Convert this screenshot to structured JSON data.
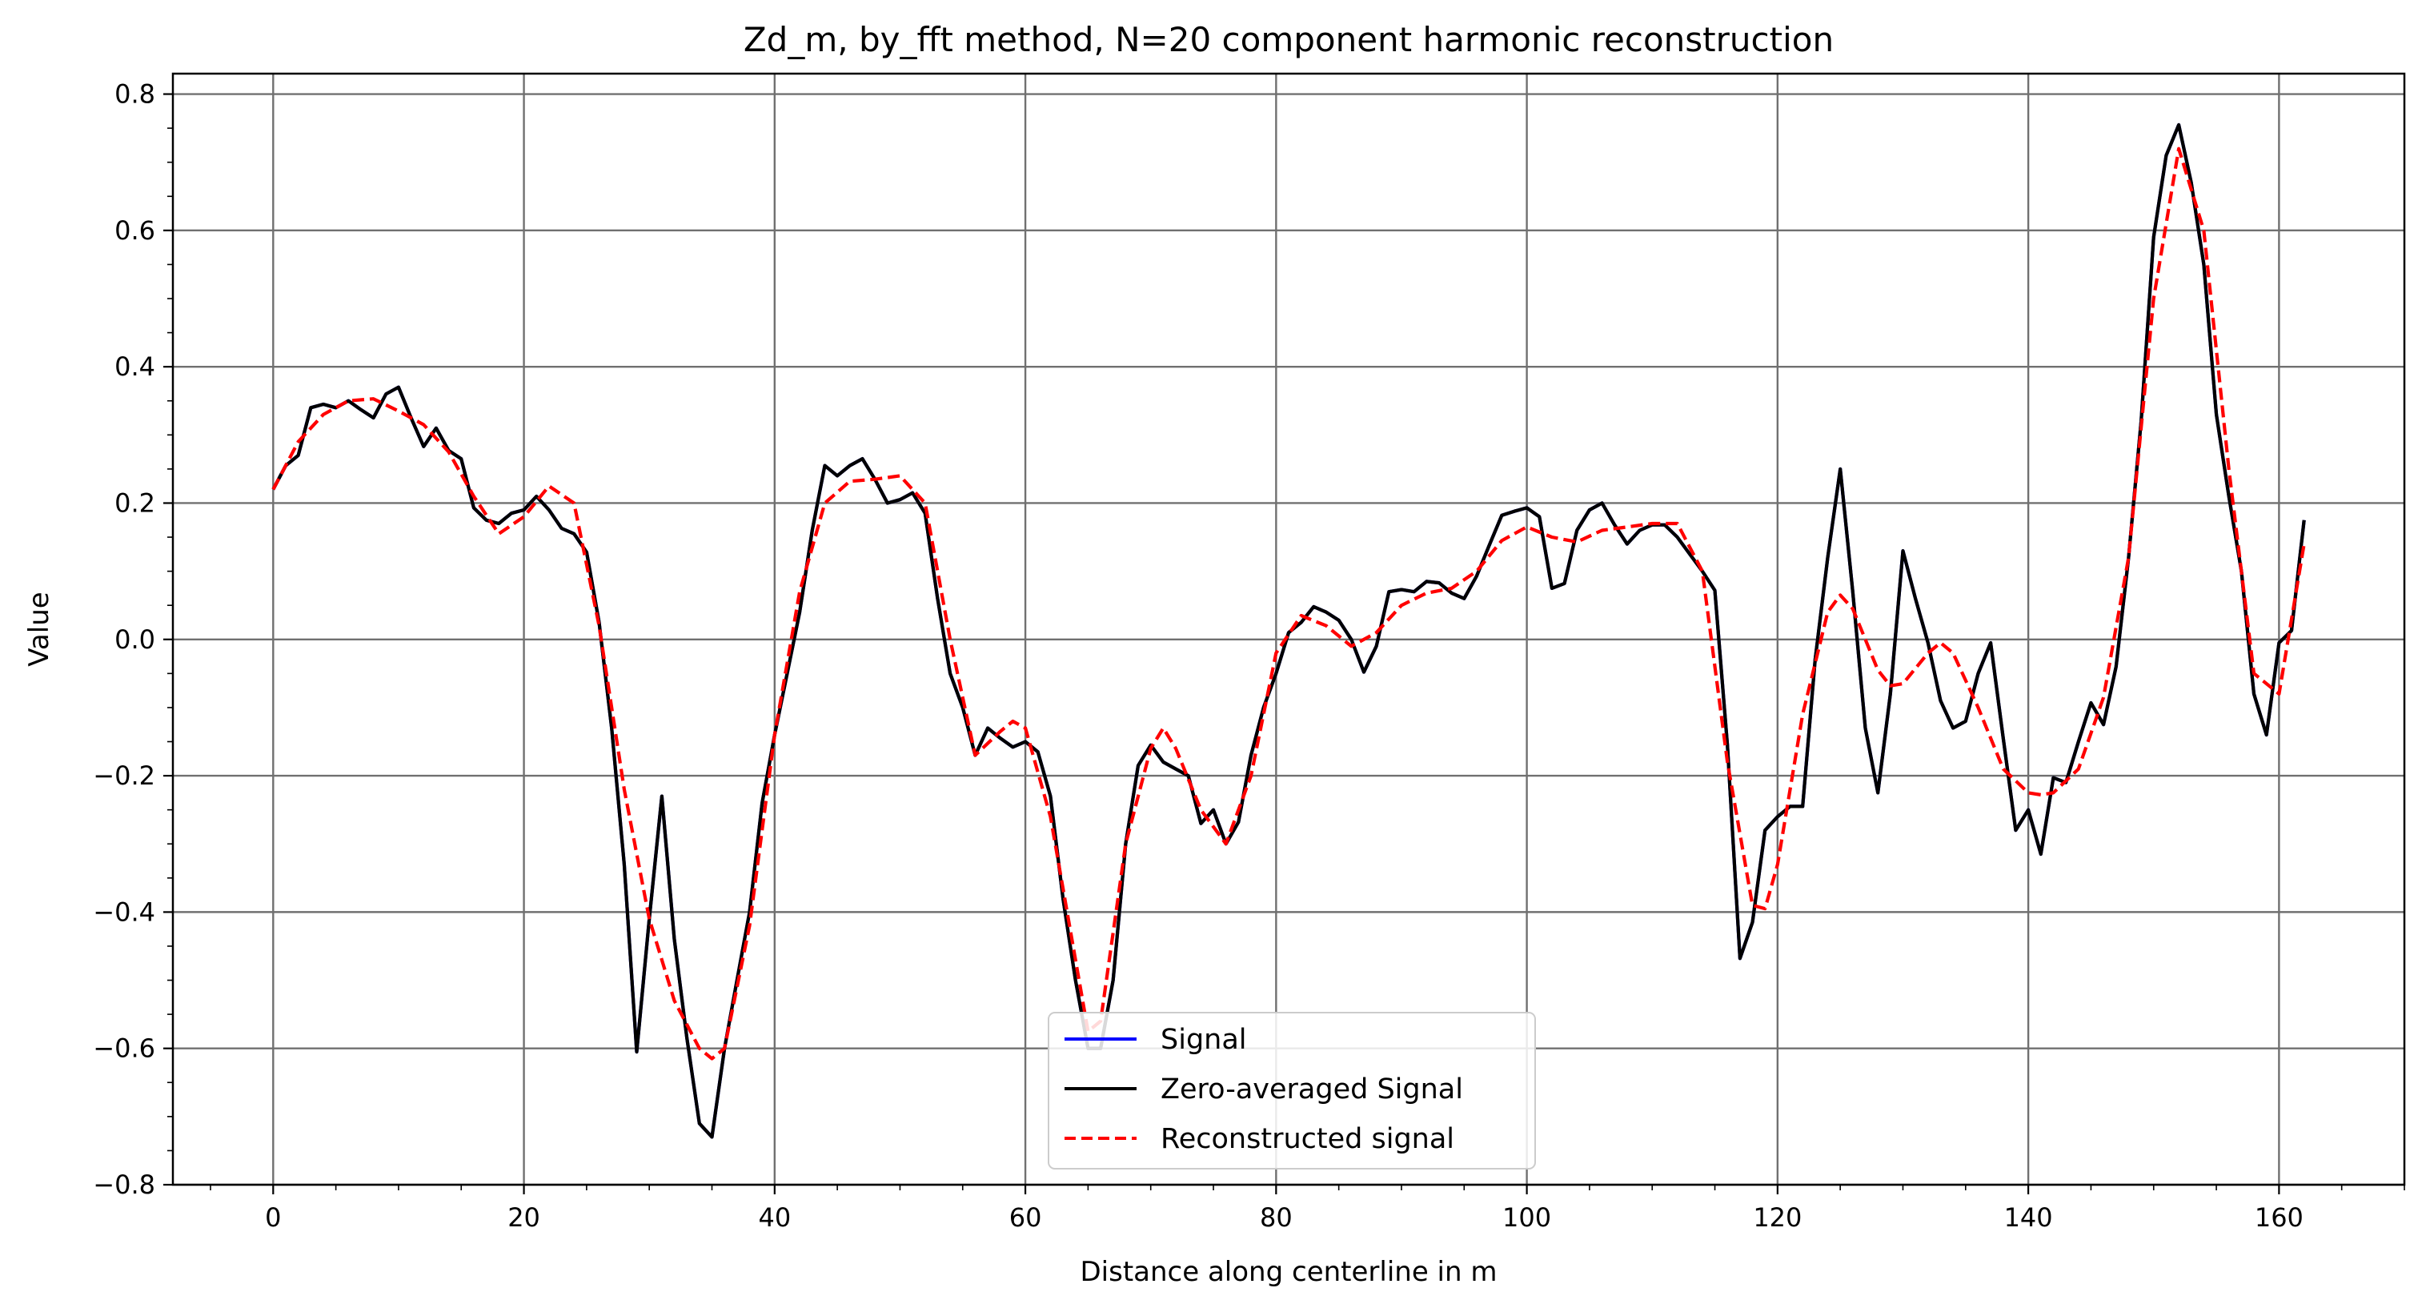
{
  "chart_data": {
    "type": "line",
    "title": "Zd_m, by_fft method, N=20 component harmonic reconstruction",
    "xlabel": "Distance along centerline in m",
    "ylabel": "Value",
    "xlim": [
      -8,
      170
    ],
    "ylim": [
      -0.8,
      0.83
    ],
    "xticks": [
      0,
      20,
      40,
      60,
      80,
      100,
      120,
      140,
      160
    ],
    "yticks": [
      -0.8,
      -0.6,
      -0.4,
      -0.2,
      0.0,
      0.2,
      0.4,
      0.6,
      0.8
    ],
    "ytick_labels": [
      "−0.8",
      "−0.6",
      "−0.4",
      "−0.2",
      "0.0",
      "0.2",
      "0.4",
      "0.6",
      "0.8"
    ],
    "grid": true,
    "legend_position": "lower-center",
    "series": [
      {
        "name": "Signal",
        "color": "#0000ff",
        "style": "solid",
        "x": [
          0,
          1,
          2,
          3,
          4,
          5,
          6,
          7,
          8,
          9,
          10,
          11,
          12,
          13,
          14,
          15,
          16,
          17,
          18,
          19,
          20,
          21,
          22,
          23,
          24,
          25,
          26,
          27,
          28,
          29,
          30,
          31,
          32,
          33,
          34,
          35,
          36,
          37,
          38,
          39,
          40,
          41,
          42,
          43,
          44,
          45,
          46,
          47,
          48,
          49,
          50,
          51,
          52,
          53,
          54,
          55,
          56,
          57,
          58,
          59,
          60,
          61,
          62,
          63,
          64,
          65,
          66,
          67,
          68,
          69,
          70,
          71,
          72,
          73,
          74,
          75,
          76,
          77,
          78,
          79,
          80,
          81,
          82,
          83,
          84,
          85,
          86,
          87,
          88,
          89,
          90,
          91,
          92,
          93,
          94,
          95,
          96,
          97,
          98,
          99,
          100,
          101,
          102,
          103,
          104,
          105,
          106,
          107,
          108,
          109,
          110,
          111,
          112,
          113,
          114,
          115,
          116,
          117,
          118,
          119,
          120,
          121,
          122,
          123,
          124,
          125,
          126,
          127,
          128,
          129,
          130,
          131,
          132,
          133,
          134,
          135,
          136,
          137,
          138,
          139,
          140,
          141,
          142,
          143,
          144,
          145,
          146,
          147,
          148,
          149,
          150,
          151,
          152,
          153,
          154,
          155,
          156,
          157,
          158,
          159,
          160,
          161,
          162
        ],
        "y": [
          0.22,
          0.255,
          0.27,
          0.34,
          0.345,
          0.34,
          0.35,
          0.337,
          0.325,
          0.36,
          0.37,
          0.325,
          0.283,
          0.31,
          0.277,
          0.265,
          0.193,
          0.175,
          0.17,
          0.185,
          0.19,
          0.21,
          0.19,
          0.163,
          0.155,
          0.128,
          0.025,
          -0.13,
          -0.33,
          -0.605,
          -0.41,
          -0.23,
          -0.44,
          -0.585,
          -0.71,
          -0.73,
          -0.6,
          -0.5,
          -0.4,
          -0.24,
          -0.14,
          -0.05,
          0.04,
          0.16,
          0.255,
          0.24,
          0.255,
          0.265,
          0.235,
          0.2,
          0.205,
          0.215,
          0.185,
          0.06,
          -0.05,
          -0.1,
          -0.17,
          -0.13,
          -0.145,
          -0.158,
          -0.15,
          -0.165,
          -0.23,
          -0.38,
          -0.5,
          -0.6,
          -0.6,
          -0.5,
          -0.3,
          -0.185,
          -0.155,
          -0.18,
          -0.19,
          -0.2,
          -0.27,
          -0.25,
          -0.3,
          -0.268,
          -0.17,
          -0.1,
          -0.05,
          0.01,
          0.025,
          0.048,
          0.04,
          0.028,
          0.0,
          -0.048,
          -0.01,
          0.07,
          0.073,
          0.07,
          0.085,
          0.083,
          0.068,
          0.06,
          0.093,
          0.138,
          0.182,
          0.188,
          0.193,
          0.18,
          0.075,
          0.082,
          0.16,
          0.19,
          0.2,
          0.168,
          0.14,
          0.16,
          0.168,
          0.168,
          0.15,
          0.125,
          0.1,
          0.072,
          -0.155,
          -0.468,
          -0.415,
          -0.28,
          -0.26,
          -0.245,
          -0.245,
          -0.03,
          0.12,
          0.25,
          0.07,
          -0.13,
          -0.225,
          -0.08,
          0.13,
          0.06,
          -0.005,
          -0.09,
          -0.13,
          -0.12,
          -0.05,
          -0.005,
          -0.145,
          -0.28,
          -0.25,
          -0.315,
          -0.203,
          -0.21,
          -0.15,
          -0.093,
          -0.125,
          -0.04,
          0.12,
          0.32,
          0.59,
          0.71,
          0.755,
          0.67,
          0.55,
          0.33,
          0.21,
          0.1,
          -0.08,
          -0.14,
          -0.005,
          0.013,
          0.175
        ]
      },
      {
        "name": "Zero-averaged Signal",
        "color": "#000000",
        "style": "solid",
        "x": [
          0,
          1,
          2,
          3,
          4,
          5,
          6,
          7,
          8,
          9,
          10,
          11,
          12,
          13,
          14,
          15,
          16,
          17,
          18,
          19,
          20,
          21,
          22,
          23,
          24,
          25,
          26,
          27,
          28,
          29,
          30,
          31,
          32,
          33,
          34,
          35,
          36,
          37,
          38,
          39,
          40,
          41,
          42,
          43,
          44,
          45,
          46,
          47,
          48,
          49,
          50,
          51,
          52,
          53,
          54,
          55,
          56,
          57,
          58,
          59,
          60,
          61,
          62,
          63,
          64,
          65,
          66,
          67,
          68,
          69,
          70,
          71,
          72,
          73,
          74,
          75,
          76,
          77,
          78,
          79,
          80,
          81,
          82,
          83,
          84,
          85,
          86,
          87,
          88,
          89,
          90,
          91,
          92,
          93,
          94,
          95,
          96,
          97,
          98,
          99,
          100,
          101,
          102,
          103,
          104,
          105,
          106,
          107,
          108,
          109,
          110,
          111,
          112,
          113,
          114,
          115,
          116,
          117,
          118,
          119,
          120,
          121,
          122,
          123,
          124,
          125,
          126,
          127,
          128,
          129,
          130,
          131,
          132,
          133,
          134,
          135,
          136,
          137,
          138,
          139,
          140,
          141,
          142,
          143,
          144,
          145,
          146,
          147,
          148,
          149,
          150,
          151,
          152,
          153,
          154,
          155,
          156,
          157,
          158,
          159,
          160,
          161,
          162
        ],
        "y": [
          0.22,
          0.255,
          0.27,
          0.34,
          0.345,
          0.34,
          0.35,
          0.337,
          0.325,
          0.36,
          0.37,
          0.325,
          0.283,
          0.31,
          0.277,
          0.265,
          0.193,
          0.175,
          0.17,
          0.185,
          0.19,
          0.21,
          0.19,
          0.163,
          0.155,
          0.128,
          0.025,
          -0.13,
          -0.33,
          -0.605,
          -0.41,
          -0.23,
          -0.44,
          -0.585,
          -0.71,
          -0.73,
          -0.6,
          -0.5,
          -0.4,
          -0.24,
          -0.14,
          -0.05,
          0.04,
          0.16,
          0.255,
          0.24,
          0.255,
          0.265,
          0.235,
          0.2,
          0.205,
          0.215,
          0.185,
          0.06,
          -0.05,
          -0.1,
          -0.17,
          -0.13,
          -0.145,
          -0.158,
          -0.15,
          -0.165,
          -0.23,
          -0.38,
          -0.5,
          -0.6,
          -0.6,
          -0.5,
          -0.3,
          -0.185,
          -0.155,
          -0.18,
          -0.19,
          -0.2,
          -0.27,
          -0.25,
          -0.3,
          -0.268,
          -0.17,
          -0.1,
          -0.05,
          0.01,
          0.025,
          0.048,
          0.04,
          0.028,
          0.0,
          -0.048,
          -0.01,
          0.07,
          0.073,
          0.07,
          0.085,
          0.083,
          0.068,
          0.06,
          0.093,
          0.138,
          0.182,
          0.188,
          0.193,
          0.18,
          0.075,
          0.082,
          0.16,
          0.19,
          0.2,
          0.168,
          0.14,
          0.16,
          0.168,
          0.168,
          0.15,
          0.125,
          0.1,
          0.072,
          -0.155,
          -0.468,
          -0.415,
          -0.28,
          -0.26,
          -0.245,
          -0.245,
          -0.03,
          0.12,
          0.25,
          0.07,
          -0.13,
          -0.225,
          -0.08,
          0.13,
          0.06,
          -0.005,
          -0.09,
          -0.13,
          -0.12,
          -0.05,
          -0.005,
          -0.145,
          -0.28,
          -0.25,
          -0.315,
          -0.203,
          -0.21,
          -0.15,
          -0.093,
          -0.125,
          -0.04,
          0.12,
          0.32,
          0.59,
          0.71,
          0.755,
          0.67,
          0.55,
          0.33,
          0.21,
          0.1,
          -0.08,
          -0.14,
          -0.005,
          0.013,
          0.175
        ]
      },
      {
        "name": "Reconstructed signal",
        "color": "#ff0000",
        "style": "dashed",
        "x": [
          0,
          2,
          4,
          6,
          8,
          10,
          12,
          14,
          16,
          18,
          20,
          22,
          24,
          26,
          28,
          30,
          32,
          34,
          35,
          36,
          38,
          40,
          42,
          44,
          46,
          48,
          50,
          52,
          54,
          56,
          58,
          59,
          60,
          62,
          64,
          65,
          66,
          68,
          70,
          71,
          72,
          74,
          76,
          78,
          80,
          82,
          84,
          86,
          88,
          90,
          92,
          94,
          96,
          98,
          100,
          102,
          104,
          106,
          108,
          110,
          112,
          114,
          116,
          118,
          119,
          120,
          122,
          124,
          125,
          126,
          128,
          129,
          130,
          132,
          133,
          134,
          136,
          138,
          140,
          141,
          142,
          144,
          146,
          148,
          150,
          152,
          154,
          156,
          158,
          160,
          162
        ],
        "y": [
          0.22,
          0.29,
          0.33,
          0.35,
          0.353,
          0.335,
          0.315,
          0.275,
          0.21,
          0.155,
          0.18,
          0.225,
          0.2,
          0.02,
          -0.22,
          -0.41,
          -0.53,
          -0.6,
          -0.615,
          -0.6,
          -0.42,
          -0.14,
          0.07,
          0.2,
          0.232,
          0.235,
          0.24,
          0.2,
          0.0,
          -0.17,
          -0.135,
          -0.12,
          -0.13,
          -0.26,
          -0.47,
          -0.575,
          -0.56,
          -0.3,
          -0.16,
          -0.13,
          -0.16,
          -0.25,
          -0.3,
          -0.2,
          -0.02,
          0.035,
          0.02,
          -0.01,
          0.01,
          0.05,
          0.068,
          0.075,
          0.1,
          0.145,
          0.165,
          0.15,
          0.143,
          0.16,
          0.165,
          0.17,
          0.17,
          0.1,
          -0.18,
          -0.39,
          -0.395,
          -0.33,
          -0.11,
          0.04,
          0.065,
          0.045,
          -0.045,
          -0.068,
          -0.065,
          -0.02,
          -0.005,
          -0.02,
          -0.1,
          -0.19,
          -0.225,
          -0.228,
          -0.225,
          -0.19,
          -0.085,
          0.12,
          0.5,
          0.72,
          0.6,
          0.25,
          -0.05,
          -0.08,
          0.14
        ]
      }
    ]
  }
}
